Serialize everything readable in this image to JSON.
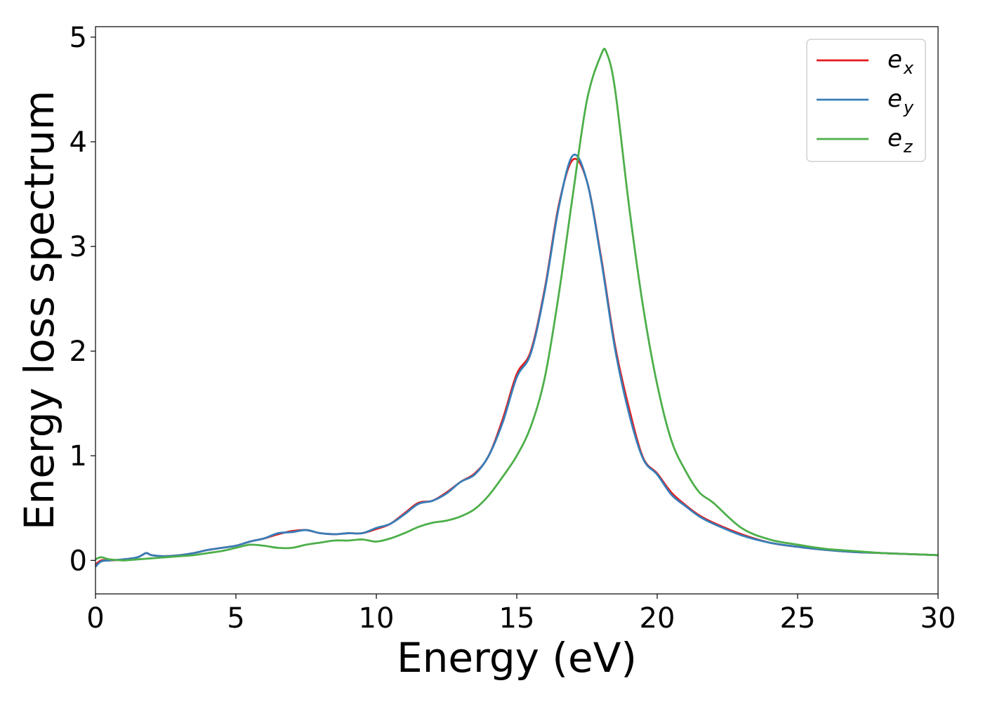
{
  "chart_data": {
    "type": "line",
    "title": "",
    "xlabel": "Energy (eV)",
    "ylabel": "Energy loss spectrum",
    "xlim": [
      0,
      30
    ],
    "ylim": [
      -0.32,
      5.1
    ],
    "xticks": [
      0,
      5,
      10,
      15,
      20,
      25,
      30
    ],
    "yticks": [
      0,
      1,
      2,
      3,
      4,
      5
    ],
    "grid": false,
    "legend_position": "top-right",
    "series": [
      {
        "name": "e_x",
        "label_base": "e",
        "label_sub": "x",
        "color": "#e41a1c",
        "x": [
          0,
          0.2,
          0.5,
          1,
          1.5,
          1.8,
          2,
          2.5,
          3,
          3.5,
          4,
          4.5,
          5,
          5.5,
          6,
          6.5,
          7,
          7.5,
          8,
          8.5,
          9,
          9.5,
          10,
          10.5,
          11,
          11.5,
          12,
          12.5,
          13,
          13.5,
          14,
          14.5,
          15,
          15.5,
          16,
          16.5,
          17,
          17.5,
          18,
          18.5,
          19,
          19.5,
          20,
          20.5,
          21,
          21.5,
          22,
          23,
          24,
          25,
          26,
          27,
          28,
          29,
          30
        ],
        "y": [
          -0.04,
          0,
          0,
          0.01,
          0.03,
          0.07,
          0.05,
          0.04,
          0.05,
          0.07,
          0.1,
          0.12,
          0.14,
          0.18,
          0.21,
          0.25,
          0.28,
          0.29,
          0.26,
          0.25,
          0.26,
          0.26,
          0.3,
          0.35,
          0.45,
          0.55,
          0.57,
          0.65,
          0.75,
          0.83,
          1,
          1.35,
          1.78,
          2,
          2.6,
          3.4,
          3.83,
          3.62,
          2.9,
          2.05,
          1.45,
          0.98,
          0.83,
          0.65,
          0.53,
          0.43,
          0.36,
          0.25,
          0.17,
          0.13,
          0.1,
          0.08,
          0.07,
          0.06,
          0.05
        ]
      },
      {
        "name": "e_y",
        "label_base": "e",
        "label_sub": "y",
        "color": "#377eb8",
        "x": [
          0,
          0.2,
          0.5,
          1,
          1.5,
          1.8,
          2,
          2.5,
          3,
          3.5,
          4,
          4.5,
          5,
          5.5,
          6,
          6.5,
          7,
          7.5,
          8,
          8.5,
          9,
          9.5,
          10,
          10.5,
          11,
          11.5,
          12,
          12.5,
          13,
          13.5,
          14,
          14.5,
          15,
          15.5,
          16,
          16.5,
          17,
          17.5,
          18,
          18.5,
          19,
          19.5,
          20,
          20.5,
          21,
          21.5,
          22,
          23,
          24,
          25,
          26,
          27,
          28,
          29,
          30
        ],
        "y": [
          -0.06,
          -0.01,
          0,
          0.01,
          0.03,
          0.07,
          0.05,
          0.04,
          0.05,
          0.07,
          0.1,
          0.12,
          0.14,
          0.18,
          0.21,
          0.26,
          0.27,
          0.29,
          0.26,
          0.25,
          0.26,
          0.26,
          0.31,
          0.35,
          0.44,
          0.54,
          0.57,
          0.64,
          0.75,
          0.82,
          1,
          1.32,
          1.75,
          1.98,
          2.58,
          3.38,
          3.87,
          3.62,
          2.88,
          2.02,
          1.4,
          0.97,
          0.82,
          0.63,
          0.52,
          0.42,
          0.35,
          0.24,
          0.17,
          0.13,
          0.1,
          0.08,
          0.07,
          0.06,
          0.05
        ]
      },
      {
        "name": "e_z",
        "label_base": "e",
        "label_sub": "z",
        "color": "#4daf4a",
        "x": [
          0,
          0.2,
          0.5,
          1,
          1.5,
          2,
          2.5,
          3,
          3.5,
          4,
          4.5,
          5,
          5.5,
          6,
          6.5,
          7,
          7.5,
          8,
          8.5,
          9,
          9.5,
          10,
          10.5,
          11,
          11.5,
          12,
          12.5,
          13,
          13.5,
          14,
          14.5,
          15,
          15.5,
          16,
          16.5,
          17,
          17.5,
          18,
          18.2,
          18.5,
          19,
          19.5,
          20,
          20.5,
          21,
          21.5,
          22,
          23,
          24,
          25,
          26,
          27,
          28,
          29,
          30
        ],
        "y": [
          0.01,
          0.03,
          0.01,
          0,
          0.01,
          0.02,
          0.03,
          0.04,
          0.05,
          0.07,
          0.09,
          0.12,
          0.15,
          0.14,
          0.12,
          0.12,
          0.15,
          0.17,
          0.19,
          0.19,
          0.2,
          0.18,
          0.21,
          0.26,
          0.32,
          0.36,
          0.38,
          0.42,
          0.49,
          0.62,
          0.8,
          1,
          1.28,
          1.75,
          2.55,
          3.5,
          4.4,
          4.83,
          4.85,
          4.5,
          3.38,
          2.42,
          1.68,
          1.15,
          0.86,
          0.65,
          0.55,
          0.31,
          0.2,
          0.15,
          0.11,
          0.09,
          0.07,
          0.06,
          0.05
        ]
      }
    ]
  }
}
